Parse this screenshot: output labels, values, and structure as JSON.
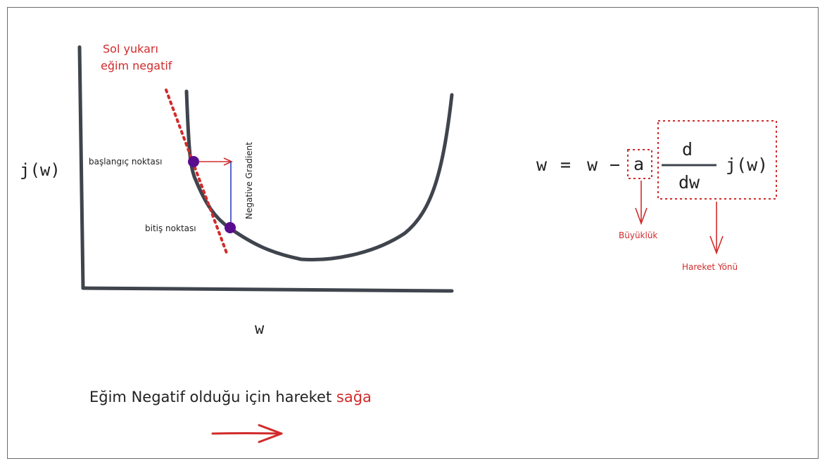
{
  "graph": {
    "y_axis_label": "j(w)",
    "x_axis_label": "w",
    "tangent_note_line1": "Sol yukarı",
    "tangent_note_line2": "eğim negatif",
    "start_point_label": "başlangıç noktası",
    "end_point_label": "bitiş noktası",
    "gradient_label": "Negative Gradient"
  },
  "formula": {
    "lhs": "w",
    "equals": "=",
    "w_term": "w",
    "minus": "−",
    "learning_rate": "a",
    "numerator": "d",
    "denominator": "dw",
    "function": "j(w)",
    "magnitude_label": "Büyüklük",
    "direction_label": "Hareket Yönü"
  },
  "caption": {
    "text": "Eğim Negatif olduğu için hareket ",
    "highlight": "sağa"
  },
  "colors": {
    "red": "#d12b2b",
    "curve": "#3f444d",
    "point": "#5a0c8f",
    "blue": "#2f3fc0"
  }
}
